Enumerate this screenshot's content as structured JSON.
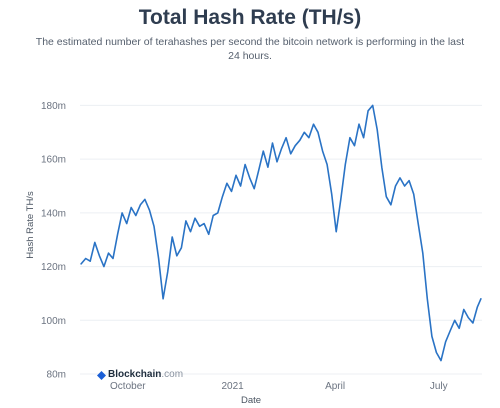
{
  "header": {
    "title": "Total Hash Rate (TH/s)",
    "subtitle": "The estimated number of terahashes per second the bitcoin network is performing in the last 24 hours."
  },
  "brand": {
    "name": "Blockchain",
    "suffix": ".com",
    "icon": "blockchain-logo-icon",
    "color": "#1b5fd6"
  },
  "chart_data": {
    "type": "line",
    "title": "Total Hash Rate (TH/s)",
    "xlabel": "Date",
    "ylabel": "Hash Rate TH/s",
    "ylim": [
      80,
      185
    ],
    "xlim": [
      "2020-08-20",
      "2021-08-08"
    ],
    "yticks": [
      {
        "value": 80,
        "label": "80m"
      },
      {
        "value": 100,
        "label": "100m"
      },
      {
        "value": 120,
        "label": "120m"
      },
      {
        "value": 140,
        "label": "140m"
      },
      {
        "value": 160,
        "label": "160m"
      },
      {
        "value": 180,
        "label": "180m"
      }
    ],
    "xticks": [
      {
        "date": "2020-10-01",
        "label": "October"
      },
      {
        "date": "2021-01-01",
        "label": "2021"
      },
      {
        "date": "2021-04-01",
        "label": "April"
      },
      {
        "date": "2021-07-01",
        "label": "July"
      }
    ],
    "grid": {
      "horizontal": true,
      "vertical": false
    },
    "line_color": "#2a73c5",
    "series": [
      {
        "x": [
          "2020-08-21",
          "2020-08-25",
          "2020-08-29",
          "2020-09-02",
          "2020-09-06",
          "2020-09-10",
          "2020-09-14",
          "2020-09-18",
          "2020-09-22",
          "2020-09-26",
          "2020-09-30",
          "2020-10-04",
          "2020-10-08",
          "2020-10-12",
          "2020-10-16",
          "2020-10-20",
          "2020-10-24",
          "2020-10-28",
          "2020-11-01",
          "2020-11-05",
          "2020-11-09",
          "2020-11-13",
          "2020-11-17",
          "2020-11-21",
          "2020-11-25",
          "2020-11-29",
          "2020-12-03",
          "2020-12-07",
          "2020-12-11",
          "2020-12-15",
          "2020-12-19",
          "2020-12-23",
          "2020-12-27",
          "2020-12-31",
          "2021-01-04",
          "2021-01-08",
          "2021-01-12",
          "2021-01-16",
          "2021-01-20",
          "2021-01-24",
          "2021-01-28",
          "2021-02-01",
          "2021-02-05",
          "2021-02-09",
          "2021-02-13",
          "2021-02-17",
          "2021-02-21",
          "2021-02-25",
          "2021-03-01",
          "2021-03-05",
          "2021-03-09",
          "2021-03-13",
          "2021-03-17",
          "2021-03-21",
          "2021-03-25",
          "2021-03-29",
          "2021-04-02",
          "2021-04-06",
          "2021-04-10",
          "2021-04-14",
          "2021-04-18",
          "2021-04-22",
          "2021-04-26",
          "2021-04-30",
          "2021-05-04",
          "2021-05-08",
          "2021-05-12",
          "2021-05-16",
          "2021-05-20",
          "2021-05-24",
          "2021-05-28",
          "2021-06-01",
          "2021-06-05",
          "2021-06-09",
          "2021-06-13",
          "2021-06-17",
          "2021-06-21",
          "2021-06-25",
          "2021-06-29",
          "2021-07-03",
          "2021-07-07",
          "2021-07-11",
          "2021-07-15",
          "2021-07-19",
          "2021-07-23",
          "2021-07-27",
          "2021-07-31",
          "2021-08-04",
          "2021-08-07"
        ],
        "y": [
          121,
          123,
          122,
          129,
          124,
          120,
          125,
          123,
          132,
          140,
          136,
          142,
          139,
          143,
          145,
          141,
          135,
          123,
          108,
          118,
          131,
          124,
          127,
          137,
          133,
          138,
          135,
          136,
          132,
          139,
          140,
          146,
          151,
          148,
          154,
          150,
          158,
          153,
          149,
          156,
          163,
          157,
          166,
          159,
          164,
          168,
          162,
          165,
          167,
          170,
          168,
          173,
          170,
          163,
          158,
          147,
          133,
          145,
          158,
          168,
          165,
          173,
          168,
          178,
          180,
          171,
          157,
          146,
          143,
          150,
          153,
          150,
          152,
          147,
          136,
          125,
          108,
          94,
          88,
          85,
          92,
          96,
          100,
          97,
          104,
          101,
          99,
          105,
          108
        ]
      }
    ]
  }
}
